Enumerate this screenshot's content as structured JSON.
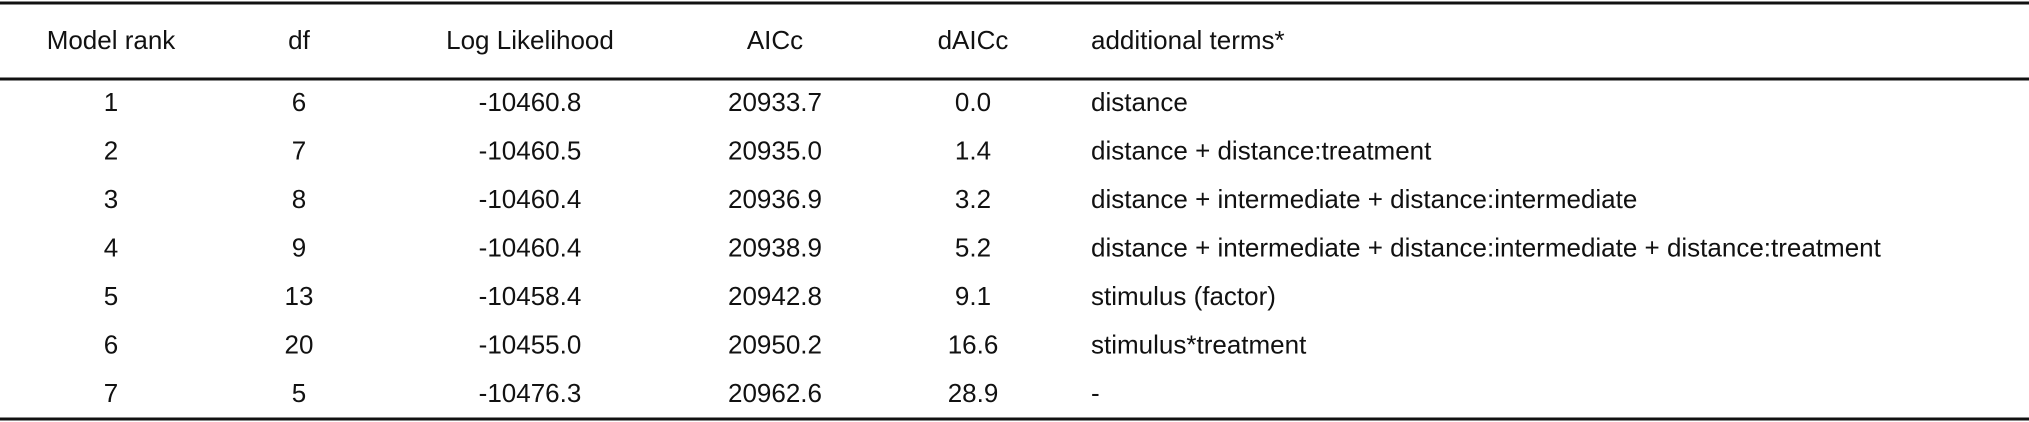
{
  "table": {
    "header": [
      "Model rank",
      "df",
      "Log Likelihood",
      "AICc",
      "dAICc",
      "additional terms*"
    ],
    "rows": [
      [
        "1",
        "6",
        "-10460.8",
        "20933.7",
        "0.0",
        "distance"
      ],
      [
        "2",
        "7",
        "-10460.5",
        "20935.0",
        "1.4",
        "distance + distance:treatment"
      ],
      [
        "3",
        "8",
        "-10460.4",
        "20936.9",
        "3.2",
        "distance + intermediate + distance:intermediate"
      ],
      [
        "4",
        "9",
        "-10460.4",
        "20938.9",
        "5.2",
        "distance + intermediate + distance:intermediate + distance:treatment"
      ],
      [
        "5",
        "13",
        "-10458.4",
        "20942.8",
        "9.1",
        "stimulus (factor)"
      ],
      [
        "6",
        "20",
        "-10455.0",
        "20950.2",
        "16.6",
        "stimulus*treatment"
      ],
      [
        "7",
        "5",
        "-10476.3",
        "20962.6",
        "28.9",
        "-"
      ]
    ]
  }
}
